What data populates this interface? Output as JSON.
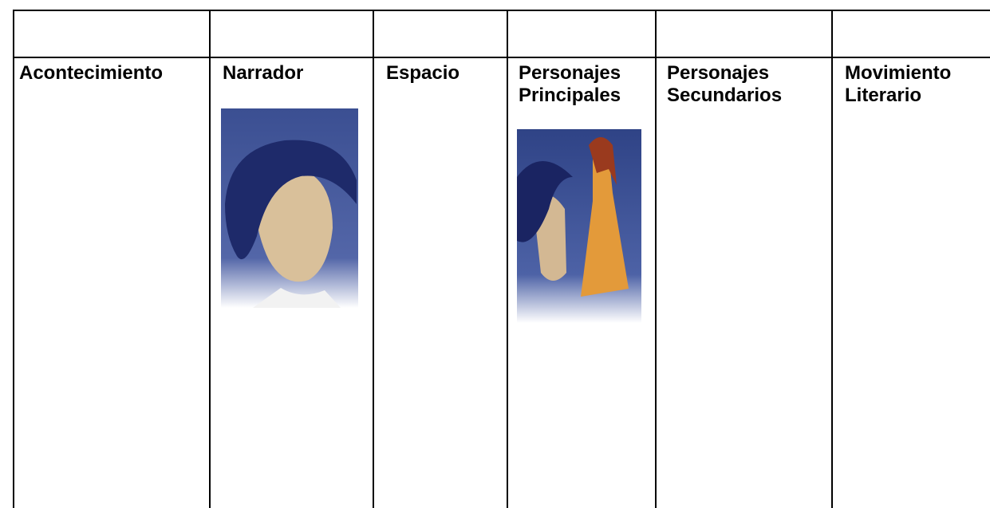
{
  "table": {
    "columns": [
      "Acontecimiento",
      "Narrador",
      "Espacio",
      "Personajes Principales",
      "Personajes Secundarios",
      "Movimiento Literario"
    ]
  }
}
